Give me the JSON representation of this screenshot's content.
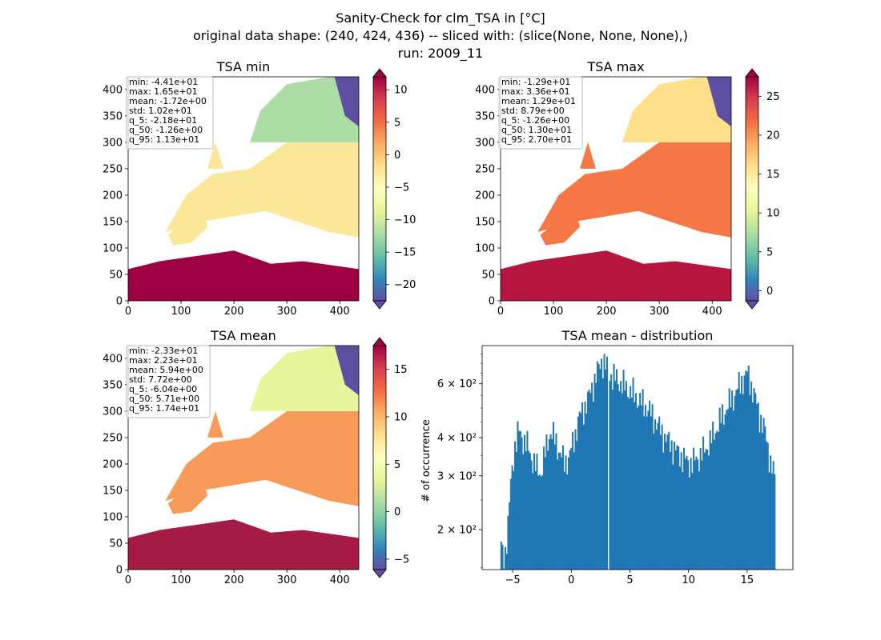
{
  "figure": {
    "suptitle": [
      "Sanity-Check for clm_TSA in [°C]",
      "original data shape: (240, 424, 436) -- sliced with: (slice(None, None, None),)",
      "run: 2009_11"
    ]
  },
  "chart_data": [
    {
      "type": "heatmap",
      "title": "TSA min",
      "xlim": [
        0,
        436
      ],
      "ylim": [
        0,
        424
      ],
      "xticks": [
        0,
        100,
        200,
        300,
        400
      ],
      "yticks": [
        0,
        50,
        100,
        150,
        200,
        250,
        300,
        350,
        400
      ],
      "colormap": "Spectral_r",
      "colorbar": {
        "range": [
          -22.5,
          12
        ],
        "ticks": [
          "10",
          "5",
          "0",
          "−5",
          "−10",
          "−15",
          "−20"
        ],
        "tick_values": [
          10,
          5,
          0,
          -5,
          -10,
          -15,
          -20
        ]
      },
      "stats": [
        "min: -4.41e+01",
        "max: 1.65e+01",
        "mean: -1.72e+00",
        "std: 1.02e+01",
        "q_5: -2.18e+01",
        "q_50: -1.26e+00",
        "q_95: 1.13e+01"
      ]
    },
    {
      "type": "heatmap",
      "title": "TSA max",
      "xlim": [
        0,
        436
      ],
      "ylim": [
        0,
        424
      ],
      "xticks": [
        0,
        100,
        200,
        300,
        400
      ],
      "yticks": [
        0,
        50,
        100,
        150,
        200,
        250,
        300,
        350,
        400
      ],
      "colormap": "Spectral_r",
      "colorbar": {
        "range": [
          -1.3,
          27.5
        ],
        "ticks": [
          "25",
          "20",
          "15",
          "10",
          "5",
          "0"
        ],
        "tick_values": [
          25,
          20,
          15,
          10,
          5,
          0
        ]
      },
      "stats": [
        "min: -1.29e+01",
        "max: 3.36e+01",
        "mean: 1.29e+01",
        "std: 8.79e+00",
        "q_5: -1.26e+00",
        "q_50: 1.30e+01",
        "q_95: 2.70e+01"
      ]
    },
    {
      "type": "heatmap",
      "title": "TSA mean",
      "xlim": [
        0,
        436
      ],
      "ylim": [
        0,
        424
      ],
      "xticks": [
        0,
        100,
        200,
        300,
        400
      ],
      "yticks": [
        0,
        50,
        100,
        150,
        200,
        250,
        300,
        350,
        400
      ],
      "colormap": "Spectral_r",
      "colorbar": {
        "range": [
          -6.1,
          17.5
        ],
        "ticks": [
          "15",
          "10",
          "5",
          "0",
          "−5"
        ],
        "tick_values": [
          15,
          10,
          5,
          0,
          -5
        ]
      },
      "stats": [
        "min: -2.33e+01",
        "max: 2.23e+01",
        "mean: 5.94e+00",
        "std: 7.72e+00",
        "q_5: -6.04e+00",
        "q_50: 5.71e+00",
        "q_95: 1.74e+01"
      ]
    },
    {
      "type": "bar",
      "title": "TSA mean - distribution",
      "ylabel": "# of occurrence",
      "yscale": "log",
      "xlim": [
        -7.6,
        18.9
      ],
      "ylim": [
        148,
        800
      ],
      "xticks": [
        "−5",
        "0",
        "5",
        "10",
        "15"
      ],
      "xtick_values": [
        -5,
        0,
        5,
        10,
        15
      ],
      "yticks": [
        "2 × 10²",
        "3 × 10²",
        "4 × 10²",
        "6 × 10²"
      ],
      "ytick_values": [
        200,
        300,
        400,
        600
      ],
      "bin_start": -6.04,
      "bin_end": 17.4,
      "gap_at": 3.1,
      "anchors": [
        [
          -6.0,
          175
        ],
        [
          -5.7,
          160
        ],
        [
          -5.4,
          205
        ],
        [
          -5.1,
          300
        ],
        [
          -4.8,
          380
        ],
        [
          -4.5,
          420
        ],
        [
          -4.2,
          400
        ],
        [
          -3.8,
          380
        ],
        [
          -3.4,
          345
        ],
        [
          -3.0,
          320
        ],
        [
          -2.6,
          305
        ],
        [
          -2.2,
          360
        ],
        [
          -1.8,
          420
        ],
        [
          -1.4,
          395
        ],
        [
          -1.0,
          360
        ],
        [
          -0.6,
          330
        ],
        [
          -0.2,
          345
        ],
        [
          0.2,
          390
        ],
        [
          0.6,
          455
        ],
        [
          1.0,
          495
        ],
        [
          1.4,
          530
        ],
        [
          1.8,
          590
        ],
        [
          2.2,
          650
        ],
        [
          2.6,
          720
        ],
        [
          3.0,
          680
        ],
        [
          3.4,
          640
        ],
        [
          3.8,
          625
        ],
        [
          4.2,
          605
        ],
        [
          4.6,
          585
        ],
        [
          5.0,
          570
        ],
        [
          5.5,
          545
        ],
        [
          6.0,
          520
        ],
        [
          6.5,
          500
        ],
        [
          7.0,
          465
        ],
        [
          7.5,
          430
        ],
        [
          8.0,
          400
        ],
        [
          8.5,
          380
        ],
        [
          9.0,
          360
        ],
        [
          9.5,
          345
        ],
        [
          10.0,
          330
        ],
        [
          10.5,
          335
        ],
        [
          11.0,
          350
        ],
        [
          11.5,
          370
        ],
        [
          12.0,
          400
        ],
        [
          12.5,
          440
        ],
        [
          13.0,
          480
        ],
        [
          13.5,
          520
        ],
        [
          14.0,
          560
        ],
        [
          14.5,
          610
        ],
        [
          15.0,
          650
        ],
        [
          15.5,
          570
        ],
        [
          16.0,
          480
        ],
        [
          16.5,
          420
        ],
        [
          17.0,
          330
        ],
        [
          17.4,
          290
        ]
      ]
    }
  ]
}
